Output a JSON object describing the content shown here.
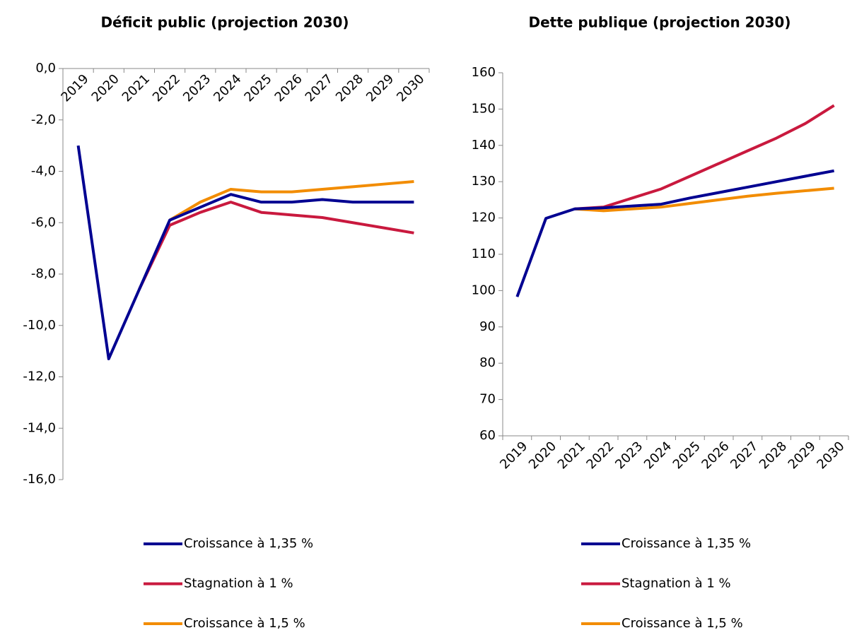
{
  "chart_data": [
    {
      "type": "line",
      "title": "Déficit public (projection 2030)",
      "categories": [
        "2019",
        "2020",
        "2021",
        "2022",
        "2023",
        "2024",
        "2025",
        "2026",
        "2027",
        "2028",
        "2029",
        "2030"
      ],
      "series": [
        {
          "name": "Stagnation à 1 %",
          "color": "#c9193e",
          "values": [
            null,
            null,
            -8.6,
            -6.1,
            -5.6,
            -5.2,
            -5.6,
            -5.7,
            -5.8,
            -6.0,
            -6.2,
            -6.4
          ]
        },
        {
          "name": "Croissance à 1,5 %",
          "color": "#f28c00",
          "values": [
            null,
            null,
            null,
            -5.9,
            -5.2,
            -4.7,
            -4.8,
            -4.8,
            -4.7,
            -4.6,
            -4.5,
            -4.4
          ]
        },
        {
          "name": "Croissance à 1,35 %",
          "color": "#000091",
          "values": [
            -3.0,
            -11.3,
            -8.6,
            -5.9,
            -5.4,
            -4.9,
            -5.2,
            -5.2,
            -5.1,
            -5.2,
            -5.2,
            -5.2
          ]
        }
      ],
      "ylim": [
        -16,
        0
      ],
      "yticks": [
        {
          "value": 0,
          "label": "0,0"
        },
        {
          "value": -2,
          "label": "-2,0"
        },
        {
          "value": -4,
          "label": "-4,0"
        },
        {
          "value": -6,
          "label": "-6,0"
        },
        {
          "value": -8,
          "label": "-8,0"
        },
        {
          "value": -10,
          "label": "-10,0"
        },
        {
          "value": -12,
          "label": "-12,0"
        },
        {
          "value": -14,
          "label": "-14,0"
        },
        {
          "value": -16,
          "label": "-16,0"
        }
      ],
      "legend": "below"
    },
    {
      "type": "line",
      "title": "Dette publique (projection 2030)",
      "categories": [
        "2019",
        "2020",
        "2021",
        "2022",
        "2023",
        "2024",
        "2025",
        "2026",
        "2027",
        "2028",
        "2029",
        "2030"
      ],
      "series": [
        {
          "name": "Stagnation à 1 %",
          "color": "#c9193e",
          "values": [
            null,
            null,
            122.5,
            123.0,
            125.5,
            128.0,
            131.5,
            135.0,
            138.5,
            142.0,
            146.0,
            151.0
          ]
        },
        {
          "name": "Croissance à 1,5 %",
          "color": "#f28c00",
          "values": [
            null,
            null,
            122.5,
            122.0,
            122.5,
            123.0,
            124.0,
            125.0,
            126.0,
            126.8,
            127.5,
            128.2
          ]
        },
        {
          "name": "Croissance à 1,35 %",
          "color": "#000091",
          "values": [
            98.3,
            119.9,
            122.5,
            122.8,
            123.3,
            123.8,
            125.5,
            127.0,
            128.5,
            130.0,
            131.5,
            133.0
          ]
        }
      ],
      "ylim": [
        60,
        160
      ],
      "yticks": [
        60,
        70,
        80,
        90,
        100,
        110,
        120,
        130,
        140,
        150,
        160
      ],
      "legend": "below"
    }
  ]
}
